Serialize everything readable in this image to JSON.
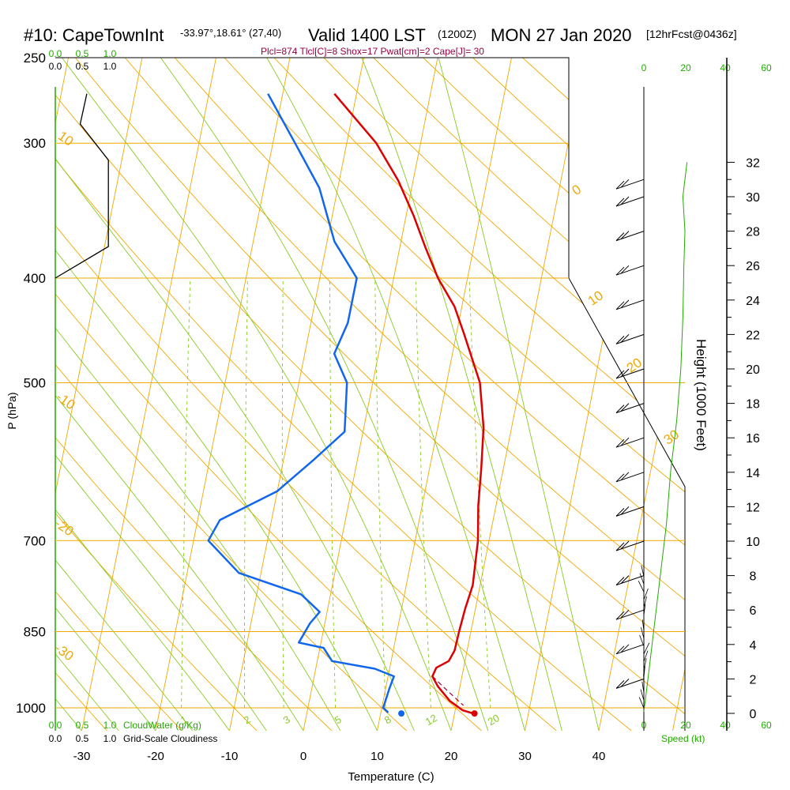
{
  "header": {
    "station": "#10: CapeTownInt",
    "coords": "-33.97°,18.61° (27,40)",
    "valid": "Valid 1400 LST",
    "zulu": "(1200Z)",
    "date": "MON 27 Jan 2020",
    "forecast": "[12hrFcst@0436z]",
    "indices": "Plcl=874 Tlcl[C]=8 Shox=17 Pwat[cm]=2 Cape[J]= 30"
  },
  "colors": {
    "temperature": "#dd0000",
    "dewpoint": "#1166ee",
    "isotherm": "#f0a800",
    "dry_adiabat": "#f0a800",
    "moist_adiabat": "#88cc22",
    "mixing_ratio": "#88cc22",
    "scale_green": "#22aa00",
    "indices": "#990044",
    "parcel": "#990044"
  },
  "chart_data": {
    "type": "line",
    "xlabel": "Temperature (C)",
    "ylabel": "P (hPa)",
    "right_axis_label": "Height (1000 Feet)",
    "x_ticks": [
      -30,
      -20,
      -10,
      0,
      10,
      20,
      30,
      40
    ],
    "pressure_ticks": [
      250,
      300,
      400,
      500,
      700,
      850,
      1000
    ],
    "height_ticks": [
      0,
      2,
      4,
      6,
      8,
      10,
      12,
      14,
      16,
      18,
      20,
      22,
      24,
      26,
      28,
      30,
      32
    ],
    "isotherm_labels": [
      "0",
      "10",
      "20",
      "30",
      "-10",
      "-20",
      "-30",
      "10"
    ],
    "mixing_ratio_labels": [
      "1",
      "2",
      "3",
      "5",
      "8",
      "12",
      "20"
    ],
    "cloud_scale_labels": [
      "0.0",
      "0.5",
      "1.0"
    ],
    "cloudwater_label": "CloudWater (g/Kg)",
    "cloudiness_label": "Grid-Scale Cloudiness",
    "speed_ticks": [
      "0",
      "20",
      "40",
      "60"
    ],
    "speed_label": "Speed (kt)",
    "temperature_series": [
      {
        "t": 22.5,
        "p": 1012
      },
      {
        "t": 21,
        "p": 1005
      },
      {
        "t": 19,
        "p": 985
      },
      {
        "t": 17,
        "p": 955
      },
      {
        "t": 16,
        "p": 935
      },
      {
        "t": 16.3,
        "p": 918
      },
      {
        "t": 17.8,
        "p": 905
      },
      {
        "t": 18.3,
        "p": 885
      },
      {
        "t": 18.4,
        "p": 850
      },
      {
        "t": 18.6,
        "p": 810
      },
      {
        "t": 19,
        "p": 770
      },
      {
        "t": 18.5,
        "p": 700
      },
      {
        "t": 17.6,
        "p": 650
      },
      {
        "t": 17,
        "p": 600
      },
      {
        "t": 16.2,
        "p": 550
      },
      {
        "t": 14.5,
        "p": 500
      },
      {
        "t": 11,
        "p": 450
      },
      {
        "t": 9,
        "p": 425
      },
      {
        "t": 6,
        "p": 400
      },
      {
        "t": 3.5,
        "p": 375
      },
      {
        "t": 1,
        "p": 350
      },
      {
        "t": -2,
        "p": 325
      },
      {
        "t": -6,
        "p": 300
      },
      {
        "t": -13,
        "p": 270
      }
    ],
    "dewpoint_series": [
      {
        "t": 11,
        "p": 1010
      },
      {
        "t": 10.2,
        "p": 1000
      },
      {
        "t": 10.5,
        "p": 960
      },
      {
        "t": 10.8,
        "p": 935
      },
      {
        "t": 8,
        "p": 920
      },
      {
        "t": 2,
        "p": 905
      },
      {
        "t": 0.5,
        "p": 880
      },
      {
        "t": -3,
        "p": 870
      },
      {
        "t": -2,
        "p": 835
      },
      {
        "t": -1,
        "p": 815
      },
      {
        "t": -4,
        "p": 785
      },
      {
        "t": -13,
        "p": 750
      },
      {
        "t": -18,
        "p": 700
      },
      {
        "t": -17,
        "p": 670
      },
      {
        "t": -10,
        "p": 630
      },
      {
        "t": -6,
        "p": 590
      },
      {
        "t": -2.5,
        "p": 555
      },
      {
        "t": -3.5,
        "p": 500
      },
      {
        "t": -6,
        "p": 470
      },
      {
        "t": -5,
        "p": 440
      },
      {
        "t": -5,
        "p": 400
      },
      {
        "t": -9,
        "p": 370
      },
      {
        "t": -12.5,
        "p": 330
      },
      {
        "t": -17,
        "p": 300
      },
      {
        "t": -22,
        "p": 270
      }
    ],
    "surface_temperature_point": {
      "t": 22.7,
      "p": 1012
    },
    "surface_dewpoint_point": {
      "t": 12.8,
      "p": 1012
    },
    "parcel_series": [
      {
        "t": 16,
        "p": 935
      },
      {
        "t": 18.5,
        "p": 965
      },
      {
        "t": 21,
        "p": 995
      }
    ],
    "cloudiness_profile": [
      {
        "c": 0.95,
        "p": 270
      },
      {
        "c": 0.75,
        "p": 288
      },
      {
        "c": 1.6,
        "p": 311
      },
      {
        "c": 1.6,
        "p": 374
      },
      {
        "c": 0.0,
        "p": 400
      }
    ],
    "height_profile_kft": [
      {
        "s": 0,
        "h": 0.1
      },
      {
        "s": 2,
        "h": 2
      },
      {
        "s": 5,
        "h": 5
      },
      {
        "s": 8,
        "h": 8
      },
      {
        "s": 11,
        "h": 11
      },
      {
        "s": 13,
        "h": 14
      },
      {
        "s": 16,
        "h": 17
      },
      {
        "s": 18,
        "h": 20
      },
      {
        "s": 19,
        "h": 23
      },
      {
        "s": 19.5,
        "h": 26
      },
      {
        "s": 20,
        "h": 28
      },
      {
        "s": 19,
        "h": 30
      },
      {
        "s": 21,
        "h": 32
      }
    ],
    "wind_height_levels": [
      2,
      4,
      6,
      8,
      10,
      12,
      14,
      16,
      18,
      20,
      22,
      24,
      26,
      28,
      30,
      31
    ]
  }
}
